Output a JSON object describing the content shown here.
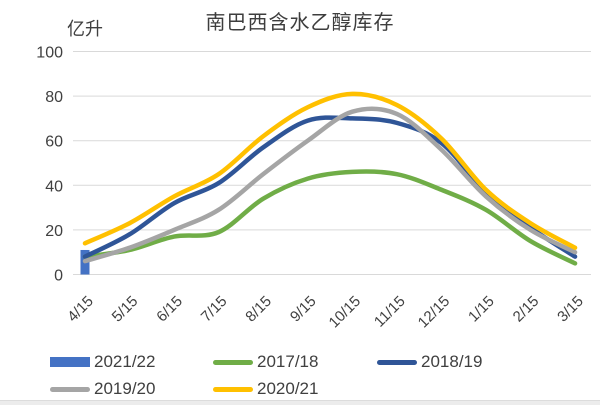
{
  "title": "南巴西含水乙醇库存",
  "y_axis_unit": "亿升",
  "colors": {
    "background": "#ffffff",
    "gridline": "#d9d9d9",
    "axis_text": "#404040",
    "title_text": "#3d3d3d",
    "bar_blue": "#4472C4",
    "green": "#70AD47",
    "dark_blue": "#2F5597",
    "gray": "#A5A5A5",
    "yellow": "#FFC000"
  },
  "chart_data": {
    "type": "line",
    "title": "南巴西含水乙醇库存",
    "ylabel": "亿升",
    "xlabel": "",
    "grid": true,
    "legend_position": "bottom",
    "ylim": [
      0,
      100
    ],
    "yticks": [
      0,
      20,
      40,
      60,
      80,
      100
    ],
    "categories": [
      "4/15",
      "5/15",
      "6/15",
      "7/15",
      "8/15",
      "9/15",
      "10/15",
      "11/15",
      "12/15",
      "1/15",
      "2/15",
      "3/15"
    ],
    "series": [
      {
        "name": "2021/22",
        "type": "bar",
        "color": "#4472C4",
        "values": [
          11,
          null,
          null,
          null,
          null,
          null,
          null,
          null,
          null,
          null,
          null,
          null
        ]
      },
      {
        "name": "2017/18",
        "type": "line",
        "color": "#70AD47",
        "values": [
          8,
          11,
          17,
          19,
          34,
          43,
          46,
          45,
          38,
          29,
          15,
          5
        ]
      },
      {
        "name": "2018/19",
        "type": "line",
        "color": "#2F5597",
        "values": [
          8,
          18,
          32,
          41,
          57,
          69,
          70,
          68,
          59,
          37,
          21,
          8
        ]
      },
      {
        "name": "2019/20",
        "type": "line",
        "color": "#A5A5A5",
        "values": [
          6,
          12,
          20,
          29,
          45,
          60,
          73,
          72,
          56,
          35,
          20,
          10
        ]
      },
      {
        "name": "2020/21",
        "type": "line",
        "color": "#FFC000",
        "values": [
          14,
          23,
          35,
          45,
          62,
          75,
          81,
          76,
          61,
          38,
          23,
          12
        ]
      }
    ]
  },
  "legend": {
    "rows": [
      [
        "2021/22",
        "2017/18",
        "2018/19"
      ],
      [
        "2019/20",
        "2020/21"
      ]
    ]
  }
}
